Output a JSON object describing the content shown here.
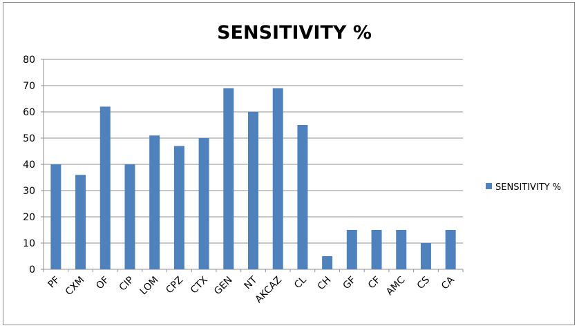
{
  "chart_data": {
    "type": "bar",
    "title": "SENSITIVITY %",
    "categories": [
      "PF",
      "CXM",
      "OF",
      "CIP",
      "LOM",
      "CPZ",
      "CTX",
      "GEN",
      "NT",
      "AKCAZ",
      "CL",
      "CH",
      "GF",
      "CF",
      "AMC",
      "CS",
      "CA"
    ],
    "series": [
      {
        "name": "SENSITIVITY %",
        "values": [
          40,
          36,
          62,
          40,
          51,
          47,
          50,
          69,
          60,
          69,
          55,
          5,
          15,
          15,
          15,
          10,
          15
        ]
      }
    ],
    "ylim": [
      0,
      80
    ],
    "yticks": [
      0,
      10,
      20,
      30,
      40,
      50,
      60,
      70,
      80
    ],
    "grid": true,
    "legend_position": "right",
    "colors": {
      "bar": "#4F81BD",
      "grid": "#8c8c8c",
      "axis": "#8c8c8c"
    }
  }
}
